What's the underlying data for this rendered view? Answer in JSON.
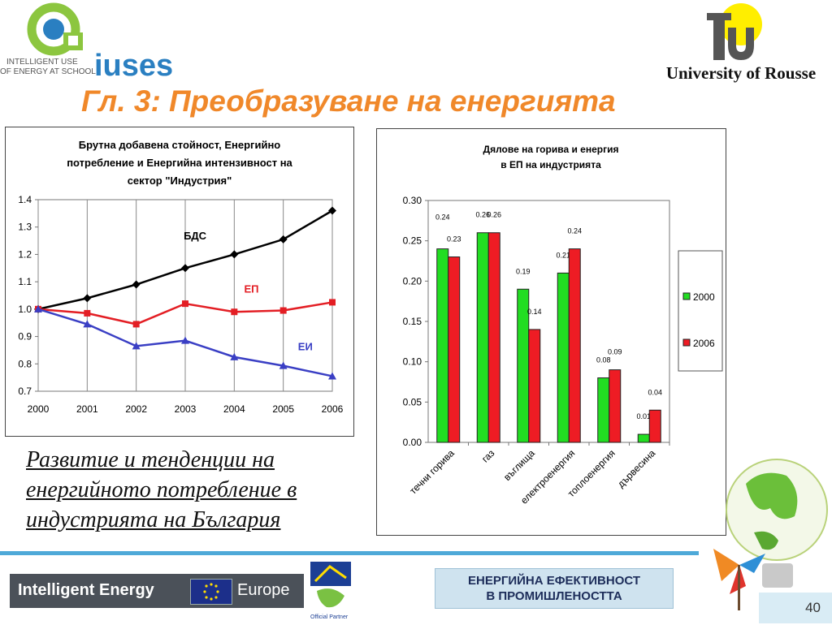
{
  "header": {
    "logo_left_tagline_1": "INTELLIGENT USE",
    "logo_left_tagline_2": "OF ENERGY AT SCHOOL",
    "logo_left_name": "iuses",
    "logo_right_name": "University of Rousse"
  },
  "title": "Гл. 3: Преобразуване на енергията",
  "caption_lines": [
    "Развитие и тенденции на",
    "енергийното потребление в",
    "индустрията на България"
  ],
  "colors": {
    "title": "#f0882a",
    "bdc": "#000000",
    "ep": "#e31e24",
    "ei": "#3a3fc4",
    "bar_2000": "#22dd22",
    "bar_2006": "#ee1c24"
  },
  "chart_data": [
    {
      "type": "line",
      "title_lines": [
        "Брутна добавена стойност, Енергийно",
        "потребление и Енергийна интензивност на",
        "сектор \"Индустрия\""
      ],
      "x": [
        "2000",
        "2001",
        "2002",
        "2003",
        "2004",
        "2005",
        "2006"
      ],
      "ylim": [
        0.7,
        1.4
      ],
      "yticks": [
        "0.7",
        "0.8",
        "0.9",
        "1.0",
        "1.1",
        "1.2",
        "1.3",
        "1.4"
      ],
      "grid": "vertical",
      "series": [
        {
          "name": "БДС",
          "values": [
            1.0,
            1.04,
            1.09,
            1.15,
            1.2,
            1.255,
            1.36
          ]
        },
        {
          "name": "ЕП",
          "values": [
            1.0,
            0.985,
            0.945,
            1.02,
            0.99,
            0.995,
            1.025
          ]
        },
        {
          "name": "ЕИ",
          "values": [
            1.0,
            0.945,
            0.865,
            0.885,
            0.825,
            0.793,
            0.755
          ]
        }
      ]
    },
    {
      "type": "bar",
      "title_lines": [
        "Дялове на горива и енергия",
        "в ЕП на индустрията"
      ],
      "categories": [
        "течни горива",
        "газ",
        "въглища",
        "електроенергия",
        "топлоенергия",
        "дървесина"
      ],
      "ylim": [
        0,
        0.3
      ],
      "yticks": [
        "0.00",
        "0.05",
        "0.10",
        "0.15",
        "0.20",
        "0.25",
        "0.30"
      ],
      "legend_position": "right",
      "series": [
        {
          "name": "2000",
          "values": [
            0.24,
            0.26,
            0.19,
            0.21,
            0.08,
            0.01
          ],
          "labels": [
            "0.24",
            "0.26",
            "0.19",
            "0.21",
            "0.08",
            "0.01"
          ]
        },
        {
          "name": "2006",
          "values": [
            0.23,
            0.26,
            0.14,
            0.24,
            0.09,
            0.04
          ],
          "labels": [
            "0.23",
            "0.26",
            "0.14",
            "0.24",
            "0.09",
            "0.04"
          ]
        }
      ]
    }
  ],
  "footer": {
    "ie_left": "Intelligent Energy",
    "ie_right": "Europe",
    "partner": "Official Partner",
    "banner_line1": "ЕНЕРГИЙНА ЕФЕКТИВНОСТ",
    "banner_line2": "В ПРОМИШЛЕНОСТТА",
    "page_number": "40"
  }
}
